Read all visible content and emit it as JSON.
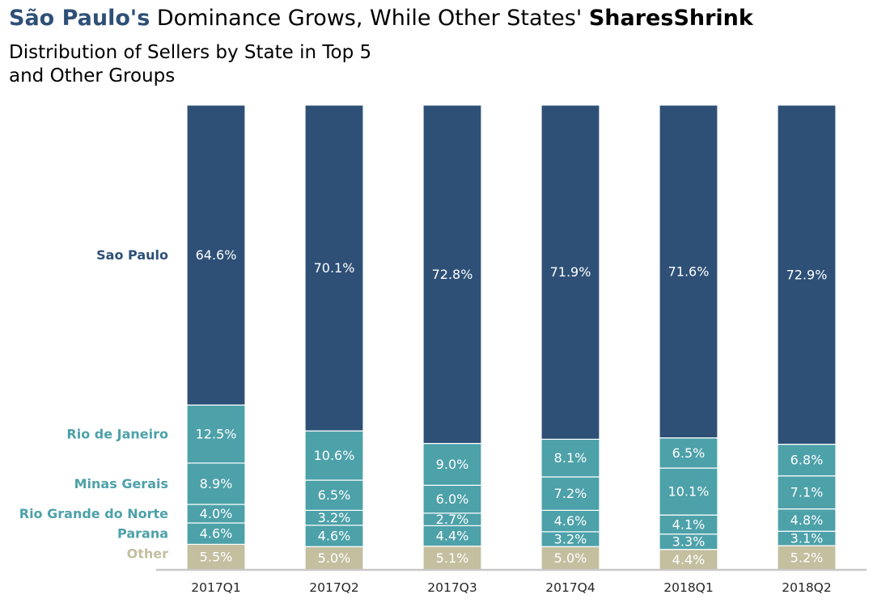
{
  "title": {
    "highlight": "São Paulo's",
    "middle": "Dominance Grows, While Other States'",
    "bold_end": "SharesShrink"
  },
  "subtitle": "Distribution of Sellers by State in Top 5\nand Other Groups",
  "colors": {
    "sao_paulo": "#2e5077",
    "other_states": "#4da1a9",
    "other": "#c3bf9f",
    "segment_text": "#ffffff",
    "axis": "#c8c8c8"
  },
  "chart_data": {
    "type": "bar",
    "stacked": true,
    "normalized": true,
    "title": "São Paulo's Dominance Grows, While Other States' SharesShrink",
    "subtitle": "Distribution of Sellers by State in Top 5 and Other Groups",
    "categories": [
      "2017Q1",
      "2017Q2",
      "2017Q3",
      "2017Q4",
      "2018Q1",
      "2018Q2"
    ],
    "series": [
      {
        "name": "Other",
        "label_color": "#c3bf9f",
        "values": [
          5.5,
          5.0,
          5.1,
          5.0,
          4.4,
          5.2
        ]
      },
      {
        "name": "Parana",
        "label_color": "#4da1a9",
        "values": [
          4.6,
          4.6,
          4.4,
          3.2,
          3.3,
          3.1
        ]
      },
      {
        "name": "Rio Grande do Norte",
        "label_color": "#4da1a9",
        "values": [
          4.0,
          3.2,
          2.7,
          4.6,
          4.1,
          4.8
        ]
      },
      {
        "name": "Minas Gerais",
        "label_color": "#4da1a9",
        "values": [
          8.9,
          6.5,
          6.0,
          7.2,
          10.1,
          7.1
        ]
      },
      {
        "name": "Rio de Janeiro",
        "label_color": "#4da1a9",
        "values": [
          12.5,
          10.6,
          9.0,
          8.1,
          6.5,
          6.8
        ]
      },
      {
        "name": "Sao Paulo",
        "label_color": "#2e5077",
        "values": [
          64.6,
          70.1,
          72.8,
          71.9,
          71.6,
          72.9
        ]
      }
    ],
    "value_suffix": "%",
    "ylim": [
      0,
      100
    ],
    "xlabel": "",
    "ylabel": "",
    "grid": false,
    "legend": "inline-left"
  }
}
